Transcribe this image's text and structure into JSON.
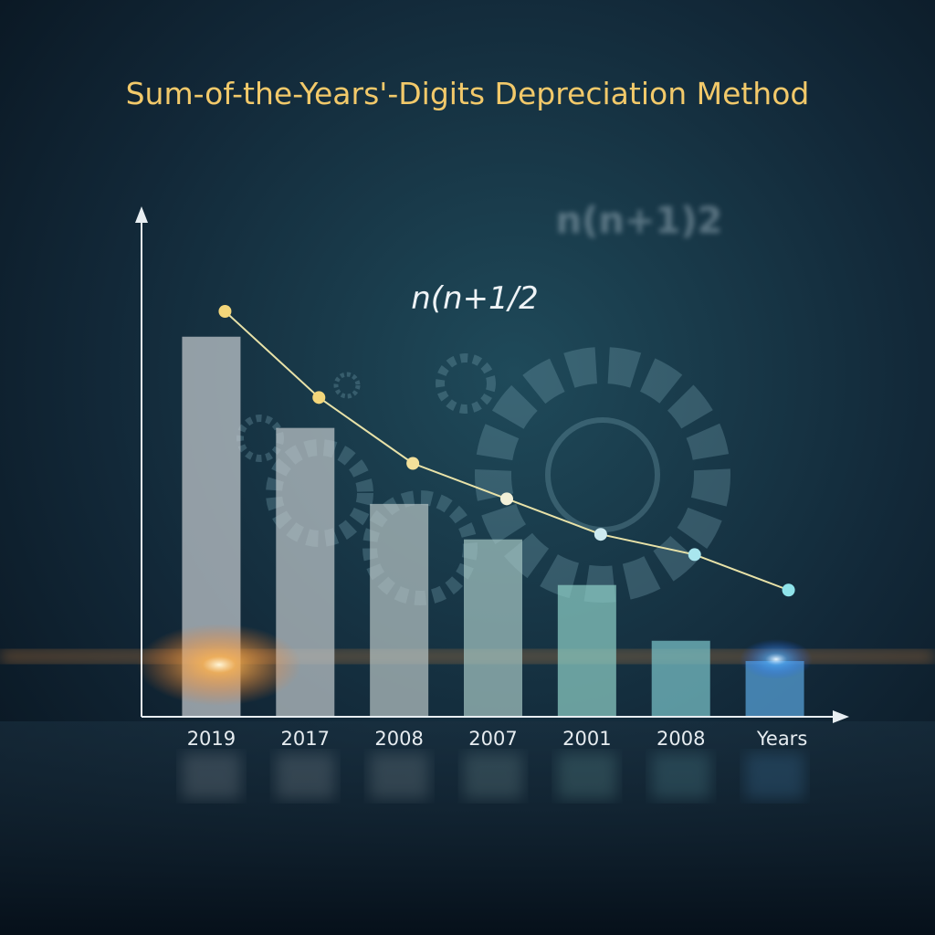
{
  "chart_data": {
    "type": "bar",
    "title": "Sum-of-the-Years'-Digits Depreciation Method",
    "annotations": [
      "n(n+1/2",
      "n(n+1)2"
    ],
    "categories": [
      "2019",
      "2017",
      "2008",
      "2007",
      "2001",
      "2008",
      null
    ],
    "xlabel": "Years",
    "values": [
      75,
      57,
      42,
      35,
      26,
      15,
      11
    ],
    "colors": [
      "#c9cfd3",
      "#c3cbcd",
      "#b9c6c6",
      "#a6c8c4",
      "#8fd0c8",
      "#7cc6cc",
      "#5aa6e0"
    ],
    "line_values": [
      80,
      63,
      50,
      43,
      36,
      32,
      25
    ],
    "line_colors": [
      "#f3d67a",
      "#f3d67a",
      "#f3e09a",
      "#f2f0d8",
      "#cdeaf0",
      "#a9e6ee",
      "#8fe3ea"
    ],
    "ylim": [
      0,
      100
    ]
  }
}
